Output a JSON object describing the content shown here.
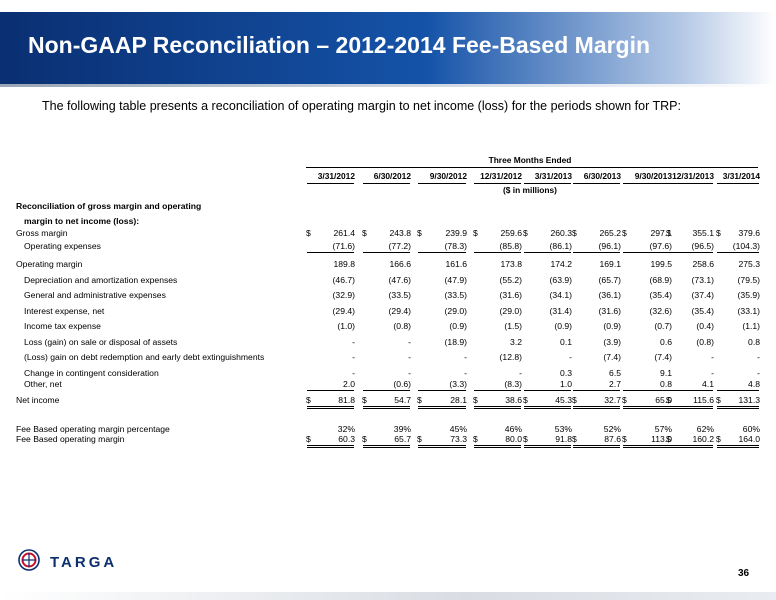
{
  "header": {
    "title": "Non-GAAP Reconciliation – 2012-2014 Fee-Based Margin"
  },
  "intro_text": "The following table presents a reconciliation of operating margin to net income (loss) for the periods shown for TRP:",
  "table": {
    "period_heading": "Three Months Ended",
    "units_note": "($ in millions)",
    "columns": [
      "3/31/2012",
      "6/30/2012",
      "9/30/2012",
      "12/31/2012",
      "3/31/2013",
      "6/30/2013",
      "9/30/2013",
      "12/31/2013",
      "3/31/2014"
    ],
    "section_heading_line1": "Reconciliation of gross margin and operating",
    "section_heading_line2": "margin to net income (loss):",
    "rows": [
      {
        "label": "Gross margin",
        "values": [
          "261.4",
          "243.8",
          "239.9",
          "259.6",
          "260.3",
          "265.2",
          "297.1",
          "355.1",
          "379.6"
        ]
      },
      {
        "label": "Operating expenses",
        "values": [
          "(71.6)",
          "(77.2)",
          "(78.3)",
          "(85.8)",
          "(86.1)",
          "(96.1)",
          "(97.6)",
          "(96.5)",
          "(104.3)"
        ]
      },
      {
        "label": "Operating margin",
        "values": [
          "189.8",
          "166.6",
          "161.6",
          "173.8",
          "174.2",
          "169.1",
          "199.5",
          "258.6",
          "275.3"
        ]
      },
      {
        "label": "Depreciation and amortization expenses",
        "values": [
          "(46.7)",
          "(47.6)",
          "(47.9)",
          "(55.2)",
          "(63.9)",
          "(65.7)",
          "(68.9)",
          "(73.1)",
          "(79.5)"
        ]
      },
      {
        "label": "General and administrative expenses",
        "values": [
          "(32.9)",
          "(33.5)",
          "(33.5)",
          "(31.6)",
          "(34.1)",
          "(36.1)",
          "(35.4)",
          "(37.4)",
          "(35.9)"
        ]
      },
      {
        "label": "Interest expense, net",
        "values": [
          "(29.4)",
          "(29.4)",
          "(29.0)",
          "(29.0)",
          "(31.4)",
          "(31.6)",
          "(32.6)",
          "(35.4)",
          "(33.1)"
        ]
      },
      {
        "label": "Income tax expense",
        "values": [
          "(1.0)",
          "(0.8)",
          "(0.9)",
          "(1.5)",
          "(0.9)",
          "(0.9)",
          "(0.7)",
          "(0.4)",
          "(1.1)"
        ]
      },
      {
        "label": "Loss (gain) on sale or disposal of assets",
        "values": [
          "-",
          "-",
          "(18.9)",
          "3.2",
          "0.1",
          "(3.9)",
          "0.6",
          "(0.8)",
          "0.8"
        ]
      },
      {
        "label": "(Loss) gain on debt redemption and early debt extinguishments",
        "values": [
          "-",
          "-",
          "-",
          "(12.8)",
          "-",
          "(7.4)",
          "(7.4)",
          "-",
          "-"
        ]
      },
      {
        "label": "Change in contingent consideration",
        "values": [
          "-",
          "-",
          "-",
          "-",
          "0.3",
          "6.5",
          "9.1",
          "-",
          "-"
        ]
      },
      {
        "label": "Other, net",
        "values": [
          "2.0",
          "(0.6)",
          "(3.3)",
          "(8.3)",
          "1.0",
          "2.7",
          "0.8",
          "4.1",
          "4.8"
        ]
      },
      {
        "label": "Net income",
        "values": [
          "81.8",
          "54.7",
          "28.1",
          "38.6",
          "45.3",
          "32.7",
          "65.0",
          "115.6",
          "131.3"
        ]
      },
      {
        "label": "Fee Based operating margin percentage",
        "values": [
          "32%",
          "39%",
          "45%",
          "46%",
          "53%",
          "52%",
          "57%",
          "62%",
          "60%"
        ]
      },
      {
        "label": "Fee Based operating margin",
        "values": [
          "60.3",
          "65.7",
          "73.3",
          "80.0",
          "91.8",
          "87.6",
          "113.0",
          "160.2",
          "164.0"
        ]
      }
    ],
    "currency_symbol": "$"
  },
  "footer": {
    "brand": "TARGA",
    "page_number": "36"
  },
  "colors": {
    "banner_dark": "#0a2f72",
    "banner_mid": "#1553a8",
    "brand_blue": "#0d2f6e",
    "logo_red": "#c8102e"
  }
}
